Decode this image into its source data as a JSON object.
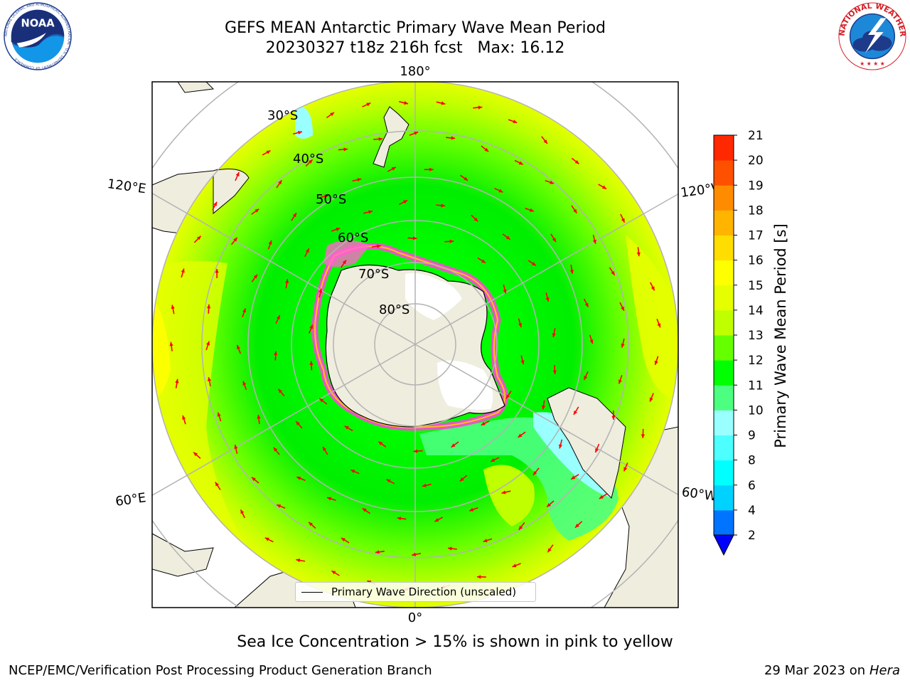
{
  "title": {
    "line1": "GEFS MEAN Antarctic Primary Wave Mean Period",
    "line2": "20230327 t18z 216h fcst   Max: 16.12"
  },
  "logos": {
    "left": "NOAA",
    "left_ring_text": "NATIONAL OCEANIC AND ATMOSPHERIC ADMINISTRATION · U.S. DEPARTMENT OF COMMERCE",
    "right_ring_text": "NATIONAL WEATHER SERVICE"
  },
  "map": {
    "longitude_labels": {
      "top": "180°",
      "bottom": "0°",
      "upper_left": "120°E",
      "upper_right": "120°W",
      "lower_left": "60°E",
      "lower_right": "60°W"
    },
    "latitude_labels": [
      "30°S",
      "40°S",
      "50°S",
      "60°S",
      "70°S",
      "80°S"
    ],
    "legend_label": "Primary Wave Direction (unscaled)",
    "arrow_color": "#ff0000",
    "land_color": "#efedde"
  },
  "colorbar": {
    "label": "Primary Wave Mean Period [s]",
    "ticks": [
      "2",
      "4",
      "6",
      "8",
      "9",
      "10",
      "11",
      "12",
      "13",
      "14",
      "15",
      "16",
      "17",
      "18",
      "19",
      "20",
      "21"
    ],
    "colors": [
      "#0000ff",
      "#0073ff",
      "#00d2ff",
      "#00ffff",
      "#4dffff",
      "#99ffff",
      "#4dff80",
      "#00ff00",
      "#66ff00",
      "#bfff00",
      "#e5ff00",
      "#ffff00",
      "#ffdd00",
      "#ffb400",
      "#ff8c00",
      "#ff5000",
      "#ff2800",
      "#ff0000"
    ]
  },
  "caption": "Sea Ice Concentration > 15% is shown in pink to yellow",
  "footer": {
    "left": "NCEP/EMC/Verification Post Processing Product Generation Branch",
    "right_date": "29 Mar 2023 on",
    "right_host": "Hera"
  }
}
